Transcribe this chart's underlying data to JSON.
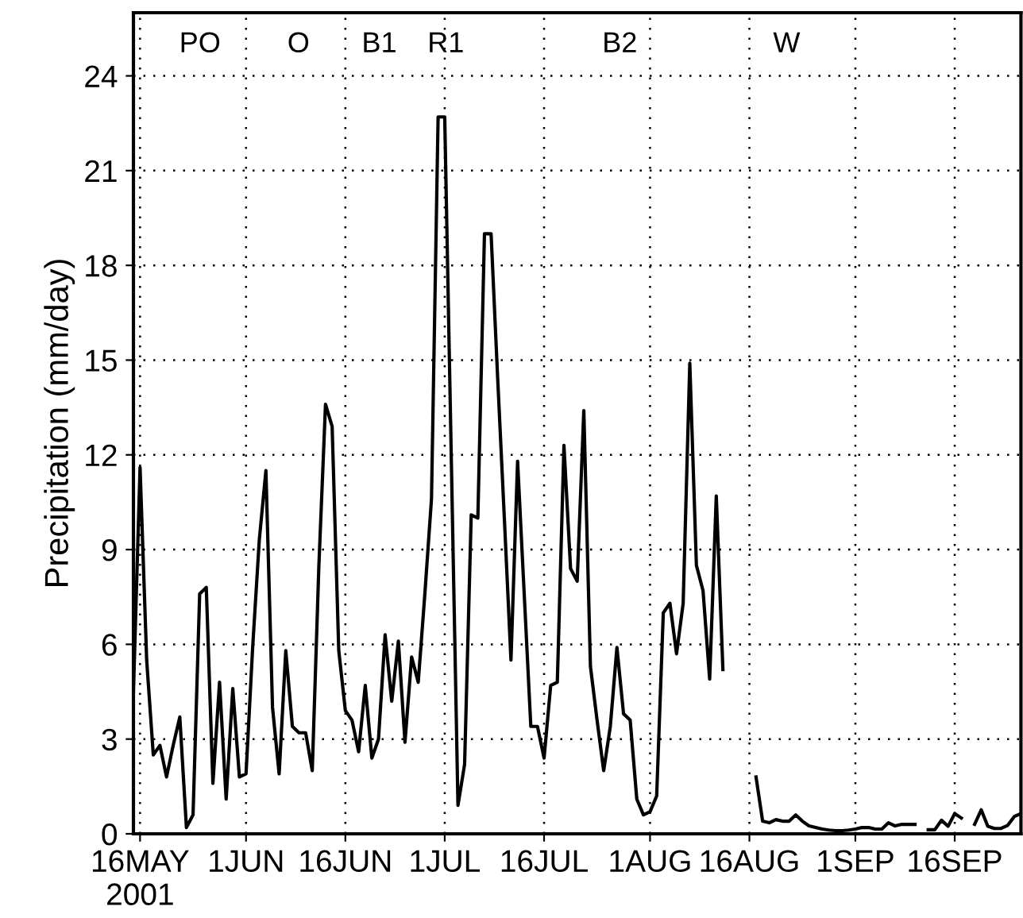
{
  "chart_data": {
    "type": "line",
    "ylabel": "Precipitation (mm/day)",
    "x": [
      "2001-05-15",
      "2001-05-16",
      "2001-05-17",
      "2001-05-18",
      "2001-05-19",
      "2001-05-20",
      "2001-05-21",
      "2001-05-22",
      "2001-05-23",
      "2001-05-24",
      "2001-05-25",
      "2001-05-26",
      "2001-05-27",
      "2001-05-28",
      "2001-05-29",
      "2001-05-30",
      "2001-05-31",
      "2001-06-01",
      "2001-06-02",
      "2001-06-03",
      "2001-06-04",
      "2001-06-05",
      "2001-06-06",
      "2001-06-07",
      "2001-06-08",
      "2001-06-09",
      "2001-06-10",
      "2001-06-11",
      "2001-06-12",
      "2001-06-13",
      "2001-06-14",
      "2001-06-15",
      "2001-06-16",
      "2001-06-17",
      "2001-06-18",
      "2001-06-19",
      "2001-06-20",
      "2001-06-21",
      "2001-06-22",
      "2001-06-23",
      "2001-06-24",
      "2001-06-25",
      "2001-06-26",
      "2001-06-27",
      "2001-06-28",
      "2001-06-29",
      "2001-06-30",
      "2001-07-01",
      "2001-07-02",
      "2001-07-03",
      "2001-07-04",
      "2001-07-05",
      "2001-07-06",
      "2001-07-07",
      "2001-07-08",
      "2001-07-09",
      "2001-07-10",
      "2001-07-11",
      "2001-07-12",
      "2001-07-13",
      "2001-07-14",
      "2001-07-15",
      "2001-07-16",
      "2001-07-17",
      "2001-07-18",
      "2001-07-19",
      "2001-07-20",
      "2001-07-21",
      "2001-07-22",
      "2001-07-23",
      "2001-07-24",
      "2001-07-25",
      "2001-07-26",
      "2001-07-27",
      "2001-07-28",
      "2001-07-29",
      "2001-07-30",
      "2001-07-31",
      "2001-08-01",
      "2001-08-02",
      "2001-08-03",
      "2001-08-04",
      "2001-08-05",
      "2001-08-06",
      "2001-08-07",
      "2001-08-08",
      "2001-08-09",
      "2001-08-10",
      "2001-08-11",
      "2001-08-12",
      "2001-08-13",
      "2001-08-14",
      "2001-08-15",
      "2001-08-16",
      "2001-08-17",
      "2001-08-18",
      "2001-08-19",
      "2001-08-20",
      "2001-08-21",
      "2001-08-22",
      "2001-08-23",
      "2001-08-24",
      "2001-08-25",
      "2001-08-26",
      "2001-08-27",
      "2001-08-28",
      "2001-08-29",
      "2001-08-30",
      "2001-08-31",
      "2001-09-01",
      "2001-09-02",
      "2001-09-03",
      "2001-09-04",
      "2001-09-05",
      "2001-09-06",
      "2001-09-07",
      "2001-09-08",
      "2001-09-09",
      "2001-09-10",
      "2001-09-11",
      "2001-09-12",
      "2001-09-13",
      "2001-09-14",
      "2001-09-15",
      "2001-09-16",
      "2001-09-17",
      "2001-09-18",
      "2001-09-19",
      "2001-09-20",
      "2001-09-21",
      "2001-09-22",
      "2001-09-23",
      "2001-09-24",
      "2001-09-25",
      "2001-09-26"
    ],
    "series": [
      {
        "color": "#000000",
        "values": [
          4.5,
          11.6,
          5.5,
          2.5,
          2.8,
          1.8,
          2.8,
          3.7,
          0.2,
          0.6,
          7.6,
          7.8,
          1.6,
          4.8,
          1.1,
          4.6,
          1.8,
          1.9,
          5.9,
          9.3,
          11.5,
          4.0,
          1.9,
          5.8,
          3.4,
          3.2,
          3.2,
          2.0,
          8.5,
          13.6,
          12.9,
          5.8,
          3.9,
          3.6,
          2.6,
          4.7,
          2.4,
          3.0,
          6.3,
          4.2,
          6.1,
          2.9,
          5.6,
          4.8,
          7.6,
          10.6,
          22.7,
          22.7,
          11.8,
          0.9,
          2.2,
          10.1,
          10.0,
          19.0,
          19.0,
          14.4,
          10.0,
          5.5,
          11.8,
          7.6,
          3.4,
          3.4,
          2.4,
          4.7,
          4.8,
          12.3,
          8.4,
          8.0,
          13.4,
          5.3,
          3.6,
          2.0,
          3.4,
          5.9,
          3.8,
          3.6,
          1.1,
          0.6,
          0.7,
          1.2,
          7.0,
          7.3,
          5.7,
          7.3,
          14.9,
          8.5,
          7.7,
          4.9,
          10.7,
          5.2,
          null,
          null,
          null,
          null,
          1.8,
          0.4,
          0.35,
          0.45,
          0.4,
          0.4,
          0.6,
          0.4,
          0.25,
          0.2,
          0.15,
          0.12,
          0.1,
          0.1,
          0.12,
          0.15,
          0.2,
          0.2,
          0.15,
          0.15,
          0.35,
          0.25,
          0.3,
          0.3,
          0.3,
          null,
          0.13,
          0.13,
          0.43,
          0.24,
          0.64,
          0.5,
          null,
          0.3,
          0.76,
          0.24,
          0.17,
          0.17,
          0.27,
          0.55,
          0.64
        ]
      }
    ],
    "xlim": [
      "2001-05-15",
      "2001-09-26"
    ],
    "xticks": [
      {
        "value": "2001-05-16",
        "label": "16MAY\n2001"
      },
      {
        "value": "2001-06-01",
        "label": "1JUN"
      },
      {
        "value": "2001-06-16",
        "label": "16JUN"
      },
      {
        "value": "2001-07-01",
        "label": "1JUL"
      },
      {
        "value": "2001-07-16",
        "label": "16JUL"
      },
      {
        "value": "2001-08-01",
        "label": "1AUG"
      },
      {
        "value": "2001-08-16",
        "label": "16AUG"
      },
      {
        "value": "2001-09-01",
        "label": "1SEP"
      },
      {
        "value": "2001-09-16",
        "label": "16SEP"
      }
    ],
    "ylim": [
      0,
      26
    ],
    "yticks": [
      0,
      3,
      6,
      9,
      12,
      15,
      18,
      21,
      24
    ],
    "grid": true,
    "line_style": "solid",
    "marker": "none",
    "annotations": [
      "PO",
      "O",
      "B1",
      "R1",
      "B2",
      "W"
    ]
  }
}
